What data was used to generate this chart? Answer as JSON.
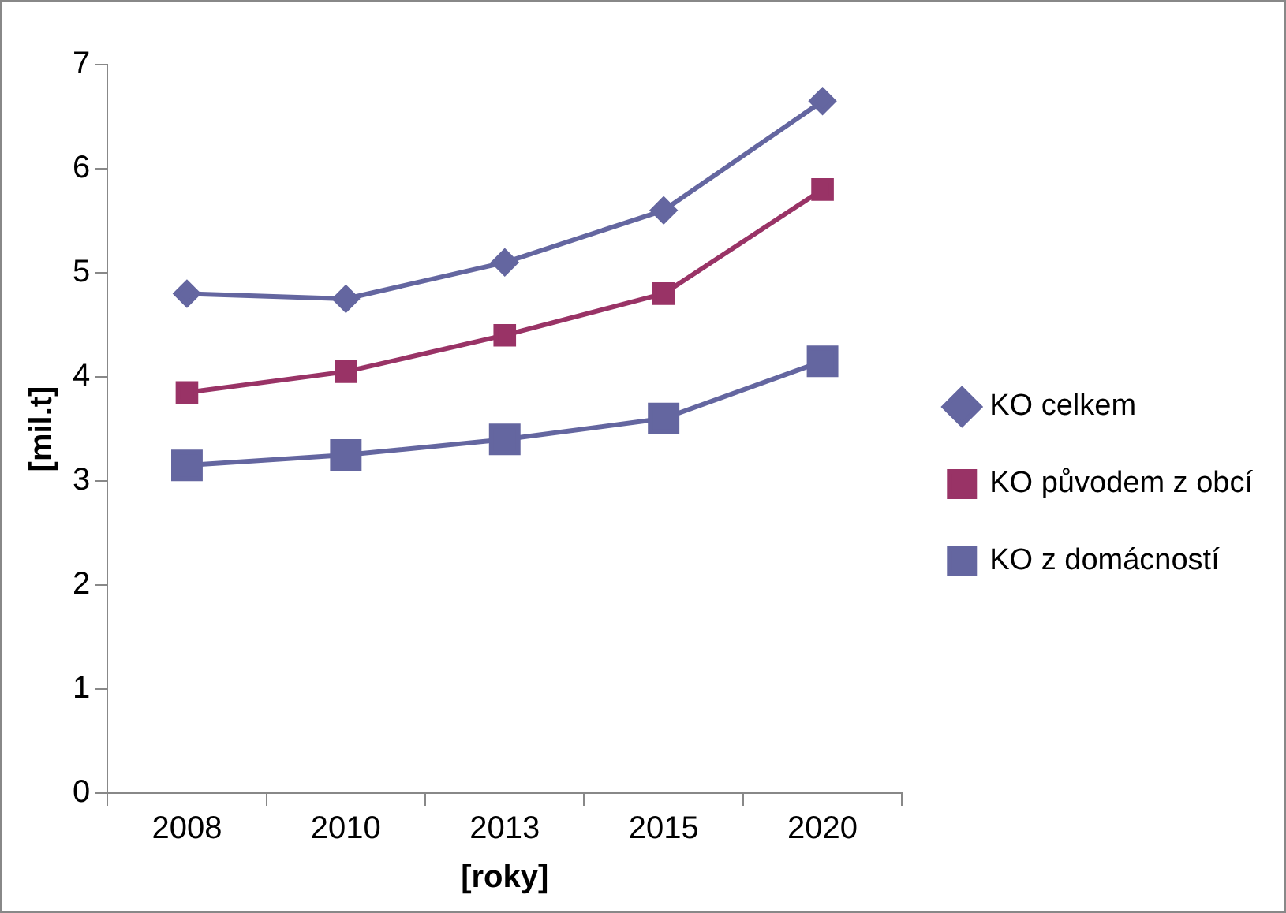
{
  "chart_data": {
    "type": "line",
    "xlabel": "[roky]",
    "ylabel": "[mil.t]",
    "categories": [
      "2008",
      "2010",
      "2013",
      "2015",
      "2020"
    ],
    "ylim": [
      0,
      7
    ],
    "yticks": [
      0,
      1,
      2,
      3,
      4,
      5,
      6,
      7
    ],
    "grid": false,
    "legend": "right",
    "line_style": "solid",
    "series": [
      {
        "name": "KO celkem",
        "color": "#6466a0",
        "marker": "diamond",
        "values": [
          4.8,
          4.75,
          5.1,
          5.6,
          6.65
        ]
      },
      {
        "name": "KO původem z obcí",
        "color": "#993366",
        "marker": "square",
        "values": [
          3.85,
          4.05,
          4.4,
          4.8,
          5.8
        ]
      },
      {
        "name": "KO z domácností",
        "color": "#6466a0",
        "marker": "square",
        "values": [
          3.15,
          3.25,
          3.4,
          3.6,
          4.15
        ]
      }
    ]
  }
}
